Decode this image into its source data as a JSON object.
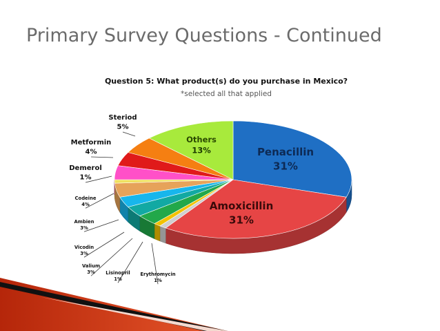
{
  "slide": {
    "title": "Primary Survey Questions - Continued"
  },
  "chart_data": {
    "type": "pie",
    "title": "Question 5: What product(s) do you purchase in Mexico?",
    "subtitle": "*selected all that applied",
    "slices": [
      {
        "label": "Penacillin",
        "value": 31,
        "value_label": "31%",
        "color": "#1f6fc4"
      },
      {
        "label": "Amoxicillin",
        "value": 31,
        "value_label": "31%",
        "color": "#e64545"
      },
      {
        "label": "Erythromycin",
        "value": 1,
        "value_label": "1%",
        "color": "#cfcfcf"
      },
      {
        "label": "Lisinopril",
        "value": 1,
        "value_label": "1%",
        "color": "#f2c200"
      },
      {
        "label": "Valium",
        "value": 3,
        "value_label": "3%",
        "color": "#22a84a"
      },
      {
        "label": "Vicodin",
        "value": 3,
        "value_label": "3%",
        "color": "#12a9a3"
      },
      {
        "label": "Ambien",
        "value": 3,
        "value_label": "3%",
        "color": "#17b6ec"
      },
      {
        "label": "Codeine",
        "value": 4,
        "value_label": "4%",
        "color": "#e6a35a"
      },
      {
        "label": "Demerol",
        "value": 1,
        "value_label": "1%",
        "color": "#f0e060"
      },
      {
        "label": "Metformin",
        "value": 4,
        "value_label": "4%",
        "color": "#ff50c8"
      },
      {
        "label": "",
        "value": 4,
        "value_label": "",
        "color": "#e01a1a"
      },
      {
        "label": "Steriod",
        "value": 5,
        "value_label": "5%",
        "color": "#f57f12"
      },
      {
        "label": "Others",
        "value": 13,
        "value_label": "13%",
        "color": "#a8ea3c"
      }
    ]
  }
}
